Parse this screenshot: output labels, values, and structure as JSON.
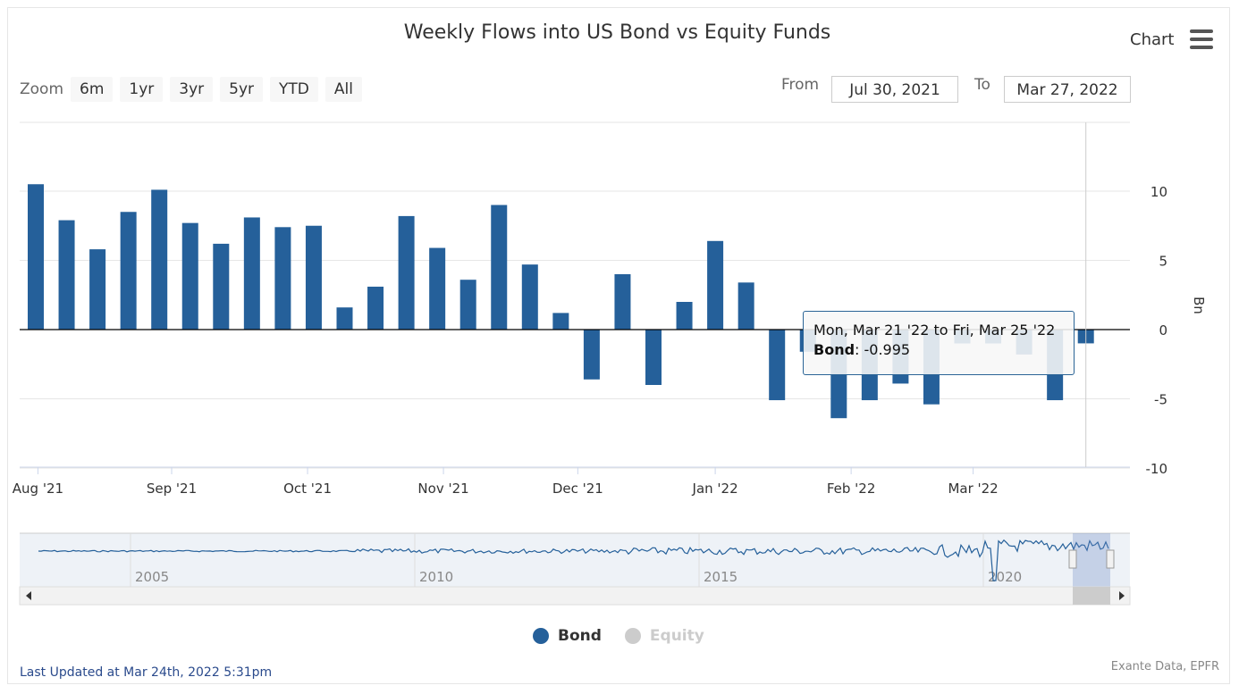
{
  "header": {
    "title": "Weekly Flows into US Bond vs Equity Funds",
    "menu_label": "Chart"
  },
  "zoom": {
    "label": "Zoom",
    "buttons": [
      "6m",
      "1yr",
      "3yr",
      "5yr",
      "YTD",
      "All"
    ]
  },
  "range": {
    "from_label": "From",
    "from_value": "Jul 30, 2021",
    "to_label": "To",
    "to_value": "Mar 27, 2022"
  },
  "tooltip": {
    "line1": "Mon, Mar 21 '22 to Fri, Mar 25 '22",
    "series": "Bond",
    "value_text": ": -0.995"
  },
  "legend": [
    {
      "name": "Bond",
      "color": "#25609a",
      "active": true
    },
    {
      "name": "Equity",
      "color": "#cccccc",
      "active": false
    }
  ],
  "footer": {
    "updated": "Last Updated at Mar 24th, 2022 5:31pm",
    "source": "Exante Data, EPFR"
  },
  "navigator": {
    "year_labels": [
      "2005",
      "2010",
      "2015",
      "2020"
    ]
  },
  "colors": {
    "bond": "#25609a",
    "equity": "#cccccc",
    "accent": "#2a6496"
  },
  "chart_data": {
    "type": "bar",
    "title": "Weekly Flows into US Bond vs Equity Funds",
    "xlabel": "",
    "ylabel": "Bn",
    "ylim": [
      -10,
      15
    ],
    "yticks": [
      -10,
      -5,
      0,
      5,
      10
    ],
    "xticks": [
      "Aug '21",
      "Sep '21",
      "Oct '21",
      "Nov '21",
      "Dec '21",
      "Jan '22",
      "Feb '22",
      "Mar '22"
    ],
    "grid": true,
    "legend_position": "bottom",
    "series": [
      {
        "name": "Bond",
        "values": [
          10.5,
          7.9,
          5.8,
          8.5,
          10.1,
          7.7,
          6.2,
          8.1,
          7.4,
          7.5,
          1.6,
          3.1,
          8.2,
          5.9,
          3.6,
          9.0,
          4.7,
          1.2,
          -3.6,
          4.0,
          -4.0,
          2.0,
          6.4,
          3.4,
          -5.1,
          -1.6,
          -6.4,
          -5.1,
          -3.9,
          -5.4,
          -1.0,
          -1.0,
          -1.8,
          -5.1,
          -0.995
        ],
        "x": [
          "Jul 30 '21",
          "Aug 6 '21",
          "Aug 13 '21",
          "Aug 20 '21",
          "Aug 27 '21",
          "Sep 3 '21",
          "Sep 10 '21",
          "Sep 17 '21",
          "Sep 24 '21",
          "Oct 1 '21",
          "Oct 8 '21",
          "Oct 15 '21",
          "Oct 22 '21",
          "Oct 29 '21",
          "Nov 5 '21",
          "Nov 12 '21",
          "Nov 19 '21",
          "Nov 26 '21",
          "Dec 3 '21",
          "Dec 10 '21",
          "Dec 17 '21",
          "Dec 24 '21",
          "Dec 31 '21",
          "Jan 7 '22",
          "Jan 14 '22",
          "Jan 21 '22",
          "Jan 28 '22",
          "Feb 4 '22",
          "Feb 11 '22",
          "Feb 18 '22",
          "Feb 25 '22",
          "Mar 4 '22",
          "Mar 11 '22",
          "Mar 18 '22",
          "Mar 25 '22"
        ]
      }
    ]
  }
}
